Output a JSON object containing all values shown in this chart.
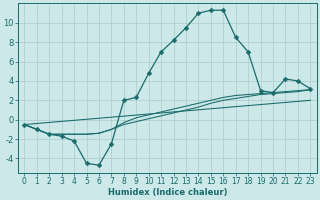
{
  "xlabel": "Humidex (Indice chaleur)",
  "x_ticks": [
    0,
    1,
    2,
    3,
    4,
    5,
    6,
    7,
    8,
    9,
    10,
    11,
    12,
    13,
    14,
    15,
    16,
    17,
    18,
    19,
    20,
    21,
    22,
    23
  ],
  "ylim": [
    -5.5,
    12.0
  ],
  "xlim": [
    -0.5,
    23.5
  ],
  "bg_color": "#cce8e8",
  "line_color": "#1a6b6b",
  "grid_color": "#aacccc",
  "line1_x": [
    0,
    1,
    2,
    3,
    4,
    5,
    6,
    7,
    8,
    9,
    10,
    11,
    12,
    13,
    14,
    15,
    16,
    17,
    18,
    19,
    20,
    21,
    22,
    23
  ],
  "line1_y": [
    -0.5,
    -1.0,
    -1.5,
    -1.7,
    -2.2,
    -4.5,
    -4.7,
    -2.5,
    2.0,
    2.3,
    4.8,
    7.0,
    8.2,
    9.5,
    11.0,
    11.3,
    11.3,
    8.5,
    7.0,
    3.0,
    2.8,
    4.2,
    4.0,
    3.2
  ],
  "line2_x": [
    0,
    1,
    2,
    3,
    4,
    5,
    6,
    7,
    8,
    9,
    10,
    11,
    12,
    13,
    14,
    15,
    16,
    17,
    18,
    19,
    20,
    21,
    22,
    23
  ],
  "line2_y": [
    -0.5,
    -1.0,
    -1.5,
    -1.5,
    -1.5,
    -1.5,
    -1.4,
    -1.0,
    -0.5,
    -0.2,
    0.1,
    0.4,
    0.7,
    1.0,
    1.3,
    1.7,
    2.0,
    2.2,
    2.4,
    2.6,
    2.7,
    2.8,
    2.9,
    3.1
  ],
  "line3_x": [
    0,
    1,
    2,
    3,
    4,
    5,
    6,
    7,
    8,
    9,
    10,
    11,
    12,
    13,
    14,
    15,
    16,
    17,
    18,
    19,
    20,
    21,
    22,
    23
  ],
  "line3_y": [
    -0.5,
    -1.0,
    -1.5,
    -1.5,
    -1.5,
    -1.5,
    -1.4,
    -1.0,
    -0.3,
    0.2,
    0.5,
    0.8,
    1.1,
    1.4,
    1.7,
    2.0,
    2.3,
    2.5,
    2.6,
    2.7,
    2.8,
    2.9,
    3.0,
    3.1
  ],
  "line4_x": [
    0,
    23
  ],
  "line4_y": [
    -0.5,
    2.0
  ],
  "yticks": [
    -4,
    -2,
    0,
    2,
    4,
    6,
    8,
    10
  ],
  "marker": "D",
  "markersize": 2.5,
  "xlabel_fontsize": 6.0,
  "tick_fontsize": 5.5,
  "linewidth": 0.9
}
